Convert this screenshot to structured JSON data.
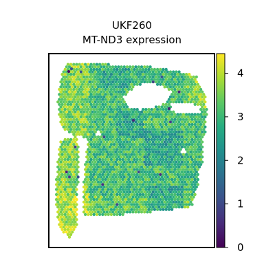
{
  "chart_data": {
    "type": "heatmap",
    "title_line1": "UKF260",
    "title_line2": "MT-ND3 expression",
    "xlabel": "",
    "ylabel": "",
    "colorbar": {
      "colormap": "viridis",
      "range": [
        0,
        4.45
      ],
      "ticks": [
        0,
        1,
        2,
        3,
        4
      ],
      "tick_labels": [
        "0",
        "1",
        "2",
        "3",
        "4"
      ]
    },
    "spot_expression_distribution": {
      "typical_range": [
        2.3,
        4.4
      ],
      "median": 3.2,
      "low_outliers": [
        0.2,
        0.6,
        1.2
      ]
    },
    "grid": false,
    "legend": "none"
  }
}
